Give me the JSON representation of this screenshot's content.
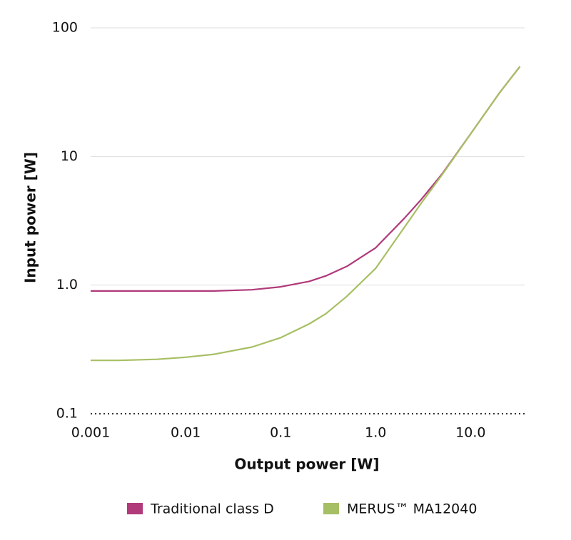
{
  "chart_data": {
    "type": "line",
    "x_label": "Output power [W]",
    "y_label": "Input power [W]",
    "xscale": "log",
    "yscale": "log",
    "grid": true,
    "legend": "bottom",
    "x": [
      0.001,
      0.002,
      0.005,
      0.01,
      0.02,
      0.05,
      0.1,
      0.2,
      0.3,
      0.5,
      1,
      2,
      3,
      5,
      10,
      20,
      33
    ],
    "series": [
      {
        "name": "Traditional class D",
        "color": "#b03a7a",
        "values": [
          0.9,
          0.9,
          0.9,
          0.9,
          0.9,
          0.92,
          0.97,
          1.07,
          1.18,
          1.4,
          1.95,
          3.3,
          4.6,
          7.3,
          15,
          31,
          50
        ]
      },
      {
        "name": "MERUS™ MA12040",
        "color": "#a7bf64",
        "values": [
          0.26,
          0.26,
          0.265,
          0.275,
          0.29,
          0.33,
          0.39,
          0.5,
          0.6,
          0.82,
          1.35,
          2.8,
          4.3,
          7.2,
          15,
          31,
          50
        ]
      }
    ],
    "xlim": [
      0.001,
      37
    ],
    "xticks": [
      0.001,
      0.01,
      0.1,
      {
        "value": 1,
        "label": "1.0"
      },
      {
        "value": 10,
        "label": "10.0"
      }
    ],
    "ylim": [
      0.1,
      100
    ],
    "yticks": [
      0.1,
      {
        "value": 1,
        "label": "1.0"
      },
      10,
      100
    ]
  }
}
